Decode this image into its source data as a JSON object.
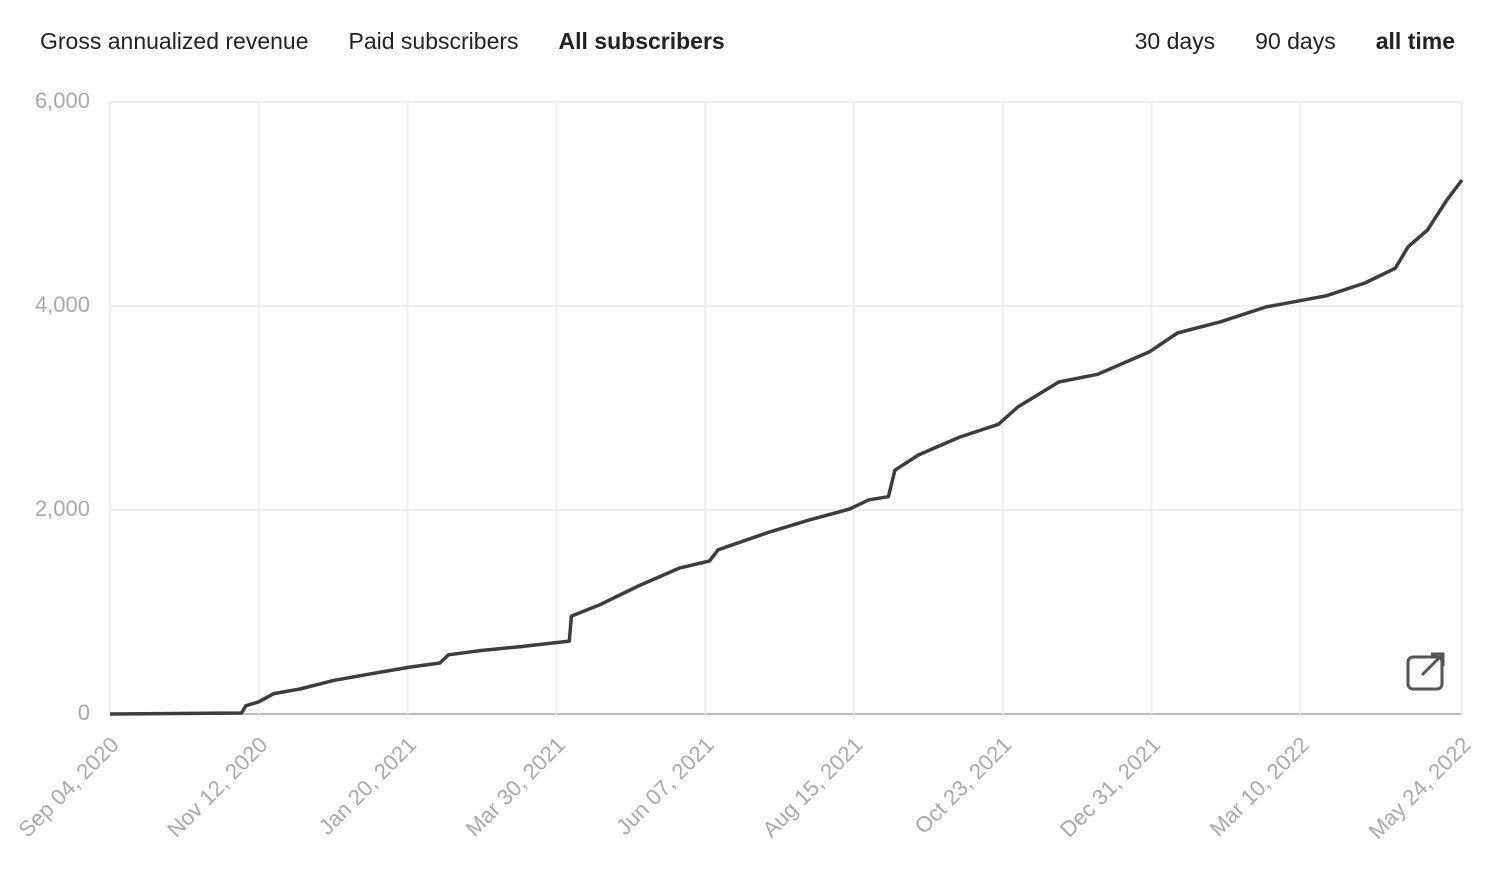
{
  "metric_tabs": {
    "items": [
      "Gross annualized revenue",
      "Paid subscribers",
      "All subscribers"
    ],
    "selected": 2
  },
  "range_tabs": {
    "items": [
      "30 days",
      "90 days",
      "all time"
    ],
    "selected": 2
  },
  "chart_data": {
    "type": "line",
    "color": "#3d3d3d",
    "grid": true,
    "x": [
      "2020-09-04",
      "2020-11-04",
      "2020-11-06",
      "2020-11-12",
      "2020-11-19",
      "2020-12-01",
      "2020-12-17",
      "2021-01-02",
      "2021-01-21",
      "2021-02-04",
      "2021-02-08",
      "2021-02-22",
      "2021-03-13",
      "2021-04-05",
      "2021-04-06",
      "2021-04-19",
      "2021-05-07",
      "2021-05-26",
      "2021-06-09",
      "2021-06-13",
      "2021-07-07",
      "2021-07-25",
      "2021-08-13",
      "2021-08-22",
      "2021-08-31",
      "2021-09-03",
      "2021-09-14",
      "2021-10-03",
      "2021-10-21",
      "2021-10-30",
      "2021-11-18",
      "2021-12-06",
      "2021-12-30",
      "2022-01-12",
      "2022-02-01",
      "2022-02-22",
      "2022-03-22",
      "2022-04-09",
      "2022-04-23",
      "2022-04-29",
      "2022-05-08",
      "2022-05-17",
      "2022-05-24"
    ],
    "values": [
      0,
      10,
      80,
      120,
      200,
      245,
      330,
      390,
      460,
      500,
      580,
      620,
      660,
      715,
      960,
      1070,
      1255,
      1430,
      1500,
      1610,
      1785,
      1900,
      2010,
      2100,
      2130,
      2390,
      2540,
      2715,
      2840,
      3010,
      3255,
      3330,
      3550,
      3735,
      3845,
      3990,
      4100,
      4225,
      4370,
      4580,
      4745,
      5040,
      5235
    ],
    "xlim": [
      "2020-09-04",
      "2022-05-24"
    ],
    "xticks": [
      {
        "value": "2020-09-04",
        "label": "Sep 04, 2020"
      },
      {
        "value": "2020-11-12",
        "label": "Nov 12, 2020"
      },
      {
        "value": "2021-01-20",
        "label": "Jan 20, 2021"
      },
      {
        "value": "2021-03-30",
        "label": "Mar 30, 2021"
      },
      {
        "value": "2021-06-07",
        "label": "Jun 07, 2021"
      },
      {
        "value": "2021-08-15",
        "label": "Aug 15, 2021"
      },
      {
        "value": "2021-10-23",
        "label": "Oct 23, 2021"
      },
      {
        "value": "2021-12-31",
        "label": "Dec 31, 2021"
      },
      {
        "value": "2022-03-10",
        "label": "Mar 10, 2022"
      },
      {
        "value": "2022-05-24",
        "label": "May 24, 2022"
      }
    ],
    "ylim": [
      0,
      6000
    ],
    "yticks": [
      0,
      {
        "value": 2000,
        "label": "2,000"
      },
      {
        "value": 4000,
        "label": "4,000"
      },
      {
        "value": 6000,
        "label": "6,000"
      }
    ]
  }
}
